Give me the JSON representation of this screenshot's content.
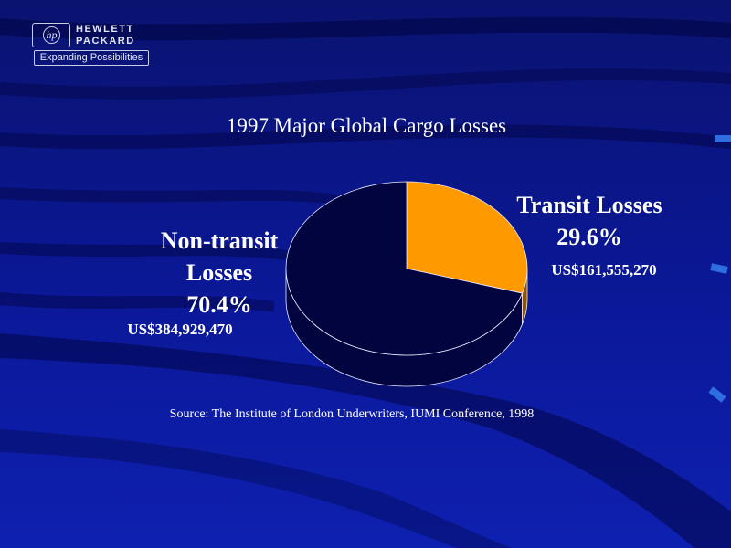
{
  "logo": {
    "badge": "hp",
    "word1": "HEWLETT",
    "word2": "PACKARD",
    "tagline": "Expanding Possibilities"
  },
  "colors": {
    "background": "#0b1690",
    "text": "#ffffff",
    "transit": "#ff9900",
    "non_transit": "#020440"
  },
  "chart_data": {
    "type": "pie",
    "title": "1997 Major Global Cargo Losses",
    "source": "Source: The Institute of London Underwriters, IUMI Conference, 1998",
    "slices": [
      {
        "label": "Transit Losses",
        "percent": 29.6,
        "percent_label": "29.6%",
        "value_label": "US$161,555,270",
        "value": 161555270,
        "color": "#ff9900"
      },
      {
        "label": "Non-transit Losses",
        "percent": 70.4,
        "percent_label": "70.4%",
        "value_label": "US$384,929,470",
        "value": 384929470,
        "color": "#020440"
      }
    ]
  }
}
